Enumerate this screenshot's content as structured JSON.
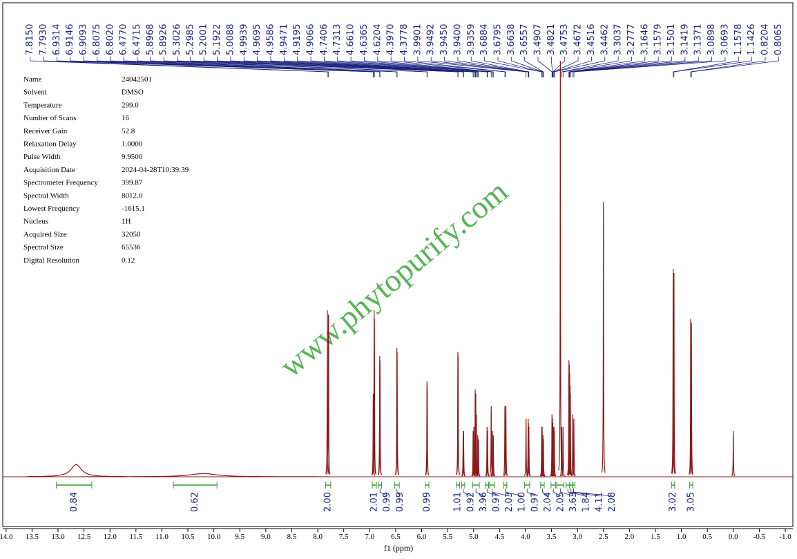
{
  "chart_data": {
    "type": "nmr",
    "x_label": "f1 (ppm)",
    "xlim": [
      14.0,
      -1.0
    ],
    "xticks": [
      {
        "value": 14,
        "label": "14.0"
      },
      {
        "value": 13.5,
        "label": "13.5"
      },
      {
        "value": 13,
        "label": "13.0"
      },
      {
        "value": 12.5,
        "label": "12.5"
      },
      {
        "value": 12,
        "label": "12.0"
      },
      {
        "value": 11.5,
        "label": "11.5"
      },
      {
        "value": 11,
        "label": "11.0"
      },
      {
        "value": 10.5,
        "label": "10.5"
      },
      {
        "value": 10,
        "label": "10.0"
      },
      {
        "value": 9.5,
        "label": "9.5"
      },
      {
        "value": 9,
        "label": "9.0"
      },
      {
        "value": 8.5,
        "label": "8.5"
      },
      {
        "value": 8,
        "label": "8.0"
      },
      {
        "value": 7.5,
        "label": "7.5"
      },
      {
        "value": 7,
        "label": "7.0"
      },
      {
        "value": 6.5,
        "label": "6.5"
      },
      {
        "value": 6,
        "label": "6.0"
      },
      {
        "value": 5.5,
        "label": "5.5"
      },
      {
        "value": 5,
        "label": "5.0"
      },
      {
        "value": 4.5,
        "label": "4.5"
      },
      {
        "value": 4,
        "label": "4.0"
      },
      {
        "value": 3.5,
        "label": "3.5"
      },
      {
        "value": 3,
        "label": "3.0"
      },
      {
        "value": 2.5,
        "label": "2.5"
      },
      {
        "value": 2,
        "label": "2.0"
      },
      {
        "value": 1.5,
        "label": "1.5"
      },
      {
        "value": 1,
        "label": "1.0"
      },
      {
        "value": 0.5,
        "label": "0.5"
      },
      {
        "value": 0,
        "label": "0.0"
      },
      {
        "value": -0.5,
        "label": "-0.5"
      },
      {
        "value": -1,
        "label": "-1.0"
      }
    ],
    "color": "#8b1a1a",
    "watermark": "www.phytopurify.com",
    "peaks": {
      "x": [
        12.65,
        10.2,
        7.815,
        7.793,
        6.9314,
        6.9146,
        6.9093,
        6.8075,
        6.802,
        6.477,
        6.4715,
        5.8968,
        5.8926,
        5.3026,
        5.2985,
        5.2001,
        5.1922,
        5.0088,
        4.9939,
        4.9695,
        4.9586,
        4.9471,
        4.9195,
        4.9066,
        4.7406,
        4.7313,
        4.661,
        4.6365,
        4.6204,
        4.397,
        4.3778,
        3.9901,
        3.9492,
        3.945,
        3.94,
        3.9359,
        3.6884,
        3.6795,
        3.6638,
        3.6557,
        3.4907,
        3.4821,
        3.4753,
        3.4672,
        3.4516,
        3.4462,
        3.33,
        3.3037,
        3.2777,
        3.1646,
        3.1579,
        3.1501,
        3.1419,
        3.1371,
        3.0898,
        3.0693,
        2.5,
        1.1578,
        1.1426,
        0.8204,
        0.8065,
        0.0
      ],
      "values": [
        3,
        0.8,
        40,
        39,
        20,
        40,
        38,
        29,
        28,
        31,
        30,
        23,
        22,
        30,
        29,
        11,
        11,
        11,
        12,
        21,
        20,
        15,
        10,
        9,
        12,
        11,
        17,
        11,
        10,
        17,
        17,
        14,
        14,
        13,
        12,
        12,
        12,
        12,
        10,
        9,
        15,
        14,
        13,
        12,
        12,
        11,
        100,
        12,
        12,
        28,
        27,
        25,
        22,
        20,
        15,
        14,
        66,
        50,
        49,
        38,
        37,
        11
      ],
      "widths": [
        0.12,
        0.3,
        0.004,
        0.004,
        0.004,
        0.004,
        0.004,
        0.004,
        0.004,
        0.004,
        0.004,
        0.004,
        0.004,
        0.004,
        0.004,
        0.004,
        0.004,
        0.004,
        0.004,
        0.004,
        0.004,
        0.004,
        0.004,
        0.004,
        0.004,
        0.004,
        0.004,
        0.004,
        0.004,
        0.004,
        0.004,
        0.004,
        0.004,
        0.004,
        0.004,
        0.004,
        0.004,
        0.004,
        0.004,
        0.004,
        0.004,
        0.004,
        0.004,
        0.004,
        0.004,
        0.004,
        0.004,
        0.004,
        0.004,
        0.004,
        0.004,
        0.004,
        0.004,
        0.004,
        0.004,
        0.004,
        0.004,
        0.004,
        0.004,
        0.004,
        0.004,
        0.004
      ]
    },
    "peak_labels": [
      {
        "value": 7.815,
        "label": "7.8150"
      },
      {
        "value": 7.793,
        "label": "7.7930"
      },
      {
        "value": 6.9314,
        "label": "6.9314"
      },
      {
        "value": 6.9146,
        "label": "6.9146"
      },
      {
        "value": 6.9093,
        "label": "6.9093"
      },
      {
        "value": 6.8075,
        "label": "6.8075"
      },
      {
        "value": 6.802,
        "label": "6.8020"
      },
      {
        "value": 6.477,
        "label": "6.4770"
      },
      {
        "value": 6.4715,
        "label": "6.4715"
      },
      {
        "value": 5.8968,
        "label": "5.8968"
      },
      {
        "value": 5.8926,
        "label": "5.8926"
      },
      {
        "value": 5.3026,
        "label": "5.3026"
      },
      {
        "value": 5.2985,
        "label": "5.2985"
      },
      {
        "value": 5.2001,
        "label": "5.2001"
      },
      {
        "value": 5.1922,
        "label": "5.1922"
      },
      {
        "value": 5.0088,
        "label": "5.0088"
      },
      {
        "value": 4.9939,
        "label": "4.9939"
      },
      {
        "value": 4.9695,
        "label": "4.9695"
      },
      {
        "value": 4.9586,
        "label": "4.9586"
      },
      {
        "value": 4.9471,
        "label": "4.9471"
      },
      {
        "value": 4.9195,
        "label": "4.9195"
      },
      {
        "value": 4.9066,
        "label": "4.9066"
      },
      {
        "value": 4.7406,
        "label": "4.7406"
      },
      {
        "value": 4.7313,
        "label": "4.7313"
      },
      {
        "value": 4.661,
        "label": "4.6610"
      },
      {
        "value": 4.6365,
        "label": "4.6365"
      },
      {
        "value": 4.6204,
        "label": "4.6204"
      },
      {
        "value": 4.397,
        "label": "4.3970"
      },
      {
        "value": 4.3778,
        "label": "4.3778"
      },
      {
        "value": 3.9901,
        "label": "3.9901"
      },
      {
        "value": 3.9492,
        "label": "3.9492"
      },
      {
        "value": 3.945,
        "label": "3.9450"
      },
      {
        "value": 3.94,
        "label": "3.9400"
      },
      {
        "value": 3.9359,
        "label": "3.9359"
      },
      {
        "value": 3.6884,
        "label": "3.6884"
      },
      {
        "value": 3.6795,
        "label": "3.6795"
      },
      {
        "value": 3.6638,
        "label": "3.6638"
      },
      {
        "value": 3.6557,
        "label": "3.6557"
      },
      {
        "value": 3.4907,
        "label": "3.4907"
      },
      {
        "value": 3.4821,
        "label": "3.4821"
      },
      {
        "value": 3.4753,
        "label": "3.4753"
      },
      {
        "value": 3.4672,
        "label": "3.4672"
      },
      {
        "value": 3.4516,
        "label": "3.4516"
      },
      {
        "value": 3.4462,
        "label": "3.4462"
      },
      {
        "value": 3.3037,
        "label": "3.3037"
      },
      {
        "value": 3.2777,
        "label": "3.2777"
      },
      {
        "value": 3.1646,
        "label": "3.1646"
      },
      {
        "value": 3.1579,
        "label": "3.1579"
      },
      {
        "value": 3.1501,
        "label": "3.1501"
      },
      {
        "value": 3.1419,
        "label": "3.1419"
      },
      {
        "value": 3.1371,
        "label": "3.1371"
      },
      {
        "value": 3.0898,
        "label": "3.0898"
      },
      {
        "value": 3.0693,
        "label": "3.0693"
      },
      {
        "value": 1.1578,
        "label": "1.1578"
      },
      {
        "value": 1.1426,
        "label": "1.1426"
      },
      {
        "value": 0.8204,
        "label": "0.8204"
      },
      {
        "value": 0.8065,
        "label": "0.8065"
      }
    ],
    "integrals": [
      {
        "value": 0.84,
        "label": "0.84",
        "range": [
          13.03,
          12.35
        ]
      },
      {
        "value": 0.62,
        "label": "0.62",
        "range": [
          10.78,
          9.94
        ]
      },
      {
        "value": 2.0,
        "label": "2.00",
        "range": [
          7.85,
          7.75
        ]
      },
      {
        "value": 2.01,
        "label": "2.01",
        "range": [
          6.95,
          6.87
        ]
      },
      {
        "value": 0.99,
        "label": "0.99",
        "range": [
          6.83,
          6.77
        ]
      },
      {
        "value": 0.99,
        "label": "0.99",
        "range": [
          6.52,
          6.43
        ]
      },
      {
        "value": 0.99,
        "label": "0.99",
        "range": [
          5.93,
          5.86
        ]
      },
      {
        "value": 1.01,
        "label": "1.01",
        "range": [
          5.33,
          5.27
        ]
      },
      {
        "value": 0.92,
        "label": "0.92",
        "range": [
          5.23,
          5.17
        ]
      },
      {
        "value": 3.96,
        "label": "3.96",
        "range": [
          5.02,
          4.89
        ]
      },
      {
        "value": 0.97,
        "label": "0.97",
        "range": [
          4.77,
          4.71
        ]
      },
      {
        "value": 2.03,
        "label": "2.03",
        "range": [
          4.69,
          4.6
        ]
      },
      {
        "value": 1.0,
        "label": "1.00",
        "range": [
          4.42,
          4.36
        ]
      },
      {
        "value": 0.97,
        "label": "0.97",
        "range": [
          4.02,
          3.92
        ]
      },
      {
        "value": 2.04,
        "label": "2.04",
        "range": [
          3.71,
          3.64
        ]
      },
      {
        "value": 2.05,
        "label": "2.05",
        "range": [
          3.51,
          3.42
        ]
      },
      {
        "value": 3.63,
        "label": "3.63",
        "range": [
          3.4,
          3.26
        ]
      },
      {
        "value": 1.84,
        "label": "1.84",
        "range": [
          3.22,
          3.15
        ]
      },
      {
        "value": 4.11,
        "label": "4.11",
        "range": [
          3.15,
          3.1
        ]
      },
      {
        "value": 2.08,
        "label": "2.08",
        "range": [
          3.1,
          3.05
        ]
      },
      {
        "value": 3.02,
        "label": "3.02",
        "range": [
          1.19,
          1.13
        ]
      },
      {
        "value": 3.05,
        "label": "3.05",
        "range": [
          0.84,
          0.78
        ]
      }
    ]
  },
  "parameters": [
    [
      "Name",
      "24042501"
    ],
    [
      "Solvent",
      "DMSO"
    ],
    [
      "Temperature",
      "299.0"
    ],
    [
      "Number of Scans",
      "16"
    ],
    [
      "Receiver Gain",
      "52.8"
    ],
    [
      "Relaxation Delay",
      "1.0000"
    ],
    [
      "Pulse Width",
      "9.9500"
    ],
    [
      "Acquisition Date",
      "2024-04-28T10:39:39"
    ],
    [
      "Spectrometer Frequency",
      "399.87"
    ],
    [
      "Spectral Width",
      "8012.0"
    ],
    [
      "Lowest Frequency",
      "-1615.1"
    ],
    [
      "Nucleus",
      "1H"
    ],
    [
      "Acquired Size",
      "32050"
    ],
    [
      "Spectral Size",
      "65536"
    ],
    [
      "Digital Resolution",
      "0.12"
    ]
  ]
}
